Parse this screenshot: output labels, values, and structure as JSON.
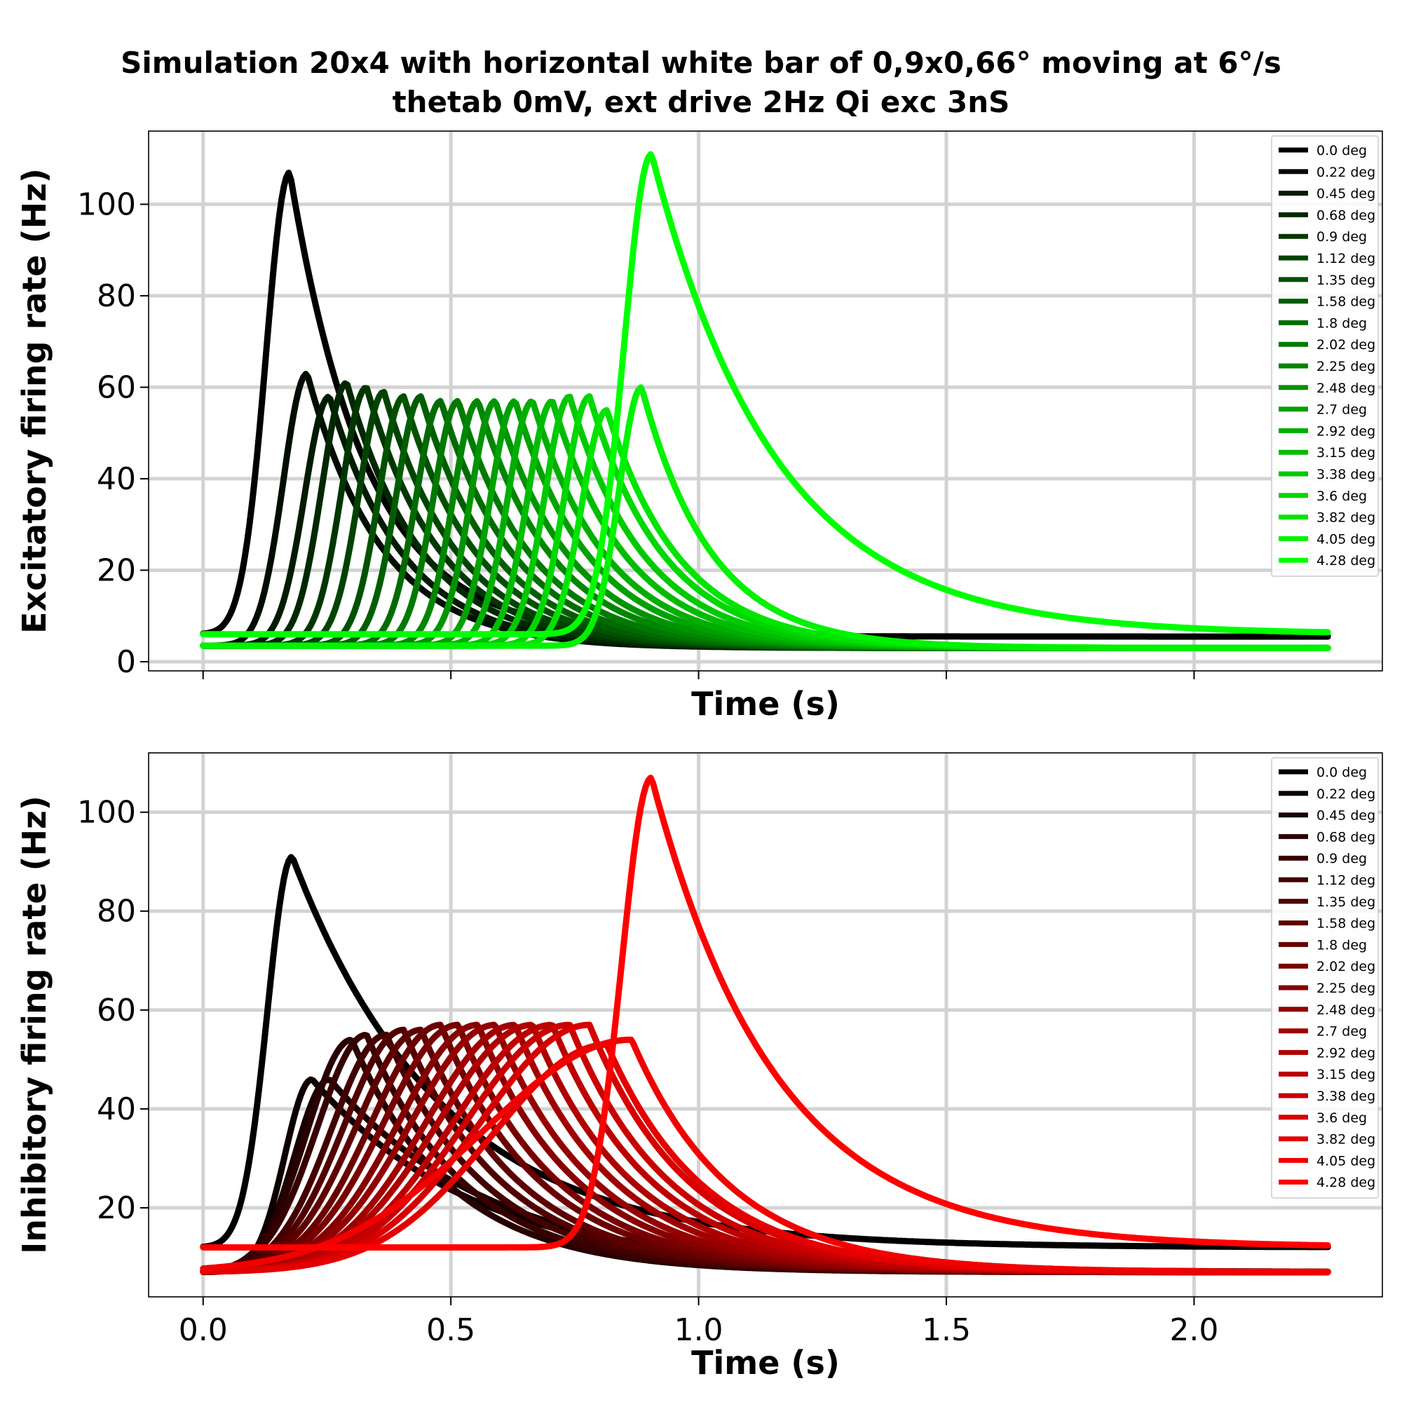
{
  "title": {
    "line1": "Simulation 20x4 with horizontal white bar of 0,9x0,66° moving at 6°/s",
    "line2": "thetab 0mV, ext drive 2Hz Qi exc 3nS"
  },
  "chart_data": [
    {
      "type": "line",
      "panel": "excitatory",
      "xlabel": "Time (s)",
      "ylabel": "Excitatory firing rate (Hz)",
      "xlim": [
        -0.11,
        2.38
      ],
      "ylim": [
        -2,
        116
      ],
      "xticks": [
        0.0,
        0.5,
        1.0,
        1.5,
        2.0
      ],
      "xtick_labels_visible": false,
      "yticks": [
        0,
        20,
        40,
        60,
        80,
        100
      ],
      "ytick_labels": [
        "0",
        "20",
        "40",
        "60",
        "80",
        "100"
      ],
      "grid": true,
      "legend_position": "top-right",
      "color_start": "#000000",
      "color_end": "#00ff00",
      "x_end": 2.27,
      "series": [
        {
          "name": "0.0 deg",
          "peak_t": 0.175,
          "peak": 107,
          "base": 6.0,
          "end": 5.5,
          "rise": 0.048,
          "decay": 0.155
        },
        {
          "name": "0.22 deg",
          "peak_t": 0.21,
          "peak": 63,
          "base": 3.5,
          "end": 3.0,
          "rise": 0.048,
          "decay": 0.15
        },
        {
          "name": "0.45 deg",
          "peak_t": 0.255,
          "peak": 58,
          "base": 3.5,
          "end": 3.0,
          "rise": 0.05,
          "decay": 0.15
        },
        {
          "name": "0.68 deg",
          "peak_t": 0.29,
          "peak": 61,
          "base": 3.5,
          "end": 3.0,
          "rise": 0.05,
          "decay": 0.15
        },
        {
          "name": "0.9 deg",
          "peak_t": 0.33,
          "peak": 60,
          "base": 3.5,
          "end": 3.0,
          "rise": 0.05,
          "decay": 0.15
        },
        {
          "name": "1.12 deg",
          "peak_t": 0.365,
          "peak": 59,
          "base": 3.5,
          "end": 3.0,
          "rise": 0.05,
          "decay": 0.15
        },
        {
          "name": "1.35 deg",
          "peak_t": 0.405,
          "peak": 58,
          "base": 3.5,
          "end": 3.0,
          "rise": 0.05,
          "decay": 0.15
        },
        {
          "name": "1.58 deg",
          "peak_t": 0.44,
          "peak": 58,
          "base": 3.5,
          "end": 3.0,
          "rise": 0.05,
          "decay": 0.15
        },
        {
          "name": "1.8 deg",
          "peak_t": 0.48,
          "peak": 57,
          "base": 3.5,
          "end": 3.0,
          "rise": 0.05,
          "decay": 0.15
        },
        {
          "name": "2.02 deg",
          "peak_t": 0.515,
          "peak": 57,
          "base": 3.5,
          "end": 3.0,
          "rise": 0.05,
          "decay": 0.15
        },
        {
          "name": "2.25 deg",
          "peak_t": 0.555,
          "peak": 57,
          "base": 3.5,
          "end": 3.0,
          "rise": 0.05,
          "decay": 0.15
        },
        {
          "name": "2.48 deg",
          "peak_t": 0.59,
          "peak": 57,
          "base": 3.5,
          "end": 3.0,
          "rise": 0.05,
          "decay": 0.15
        },
        {
          "name": "2.7 deg",
          "peak_t": 0.63,
          "peak": 57,
          "base": 3.5,
          "end": 3.0,
          "rise": 0.05,
          "decay": 0.15
        },
        {
          "name": "2.92 deg",
          "peak_t": 0.665,
          "peak": 57,
          "base": 3.5,
          "end": 3.0,
          "rise": 0.05,
          "decay": 0.15
        },
        {
          "name": "3.15 deg",
          "peak_t": 0.705,
          "peak": 57,
          "base": 3.5,
          "end": 3.0,
          "rise": 0.05,
          "decay": 0.15
        },
        {
          "name": "3.38 deg",
          "peak_t": 0.74,
          "peak": 58,
          "base": 3.5,
          "end": 3.0,
          "rise": 0.05,
          "decay": 0.15
        },
        {
          "name": "3.6 deg",
          "peak_t": 0.78,
          "peak": 58,
          "base": 3.5,
          "end": 3.0,
          "rise": 0.05,
          "decay": 0.15
        },
        {
          "name": "3.82 deg",
          "peak_t": 0.815,
          "peak": 55,
          "base": 3.5,
          "end": 3.0,
          "rise": 0.05,
          "decay": 0.15
        },
        {
          "name": "4.05 deg",
          "peak_t": 0.885,
          "peak": 60,
          "base": 3.5,
          "end": 3.0,
          "rise": 0.045,
          "decay": 0.14
        },
        {
          "name": "4.28 deg",
          "peak_t": 0.905,
          "peak": 111,
          "base": 6.0,
          "end": 6.0,
          "rise": 0.055,
          "decay": 0.25
        }
      ]
    },
    {
      "type": "line",
      "panel": "inhibitory",
      "xlabel": "Time (s)",
      "ylabel": "Inhibitory firing rate (Hz)",
      "xlim": [
        -0.11,
        2.38
      ],
      "ylim": [
        2,
        112
      ],
      "xticks": [
        0.0,
        0.5,
        1.0,
        1.5,
        2.0
      ],
      "xtick_labels_visible": true,
      "xtick_labels": [
        "0.0",
        "0.5",
        "1.0",
        "1.5",
        "2.0"
      ],
      "yticks": [
        20,
        40,
        60,
        80,
        100
      ],
      "ytick_labels": [
        "20",
        "40",
        "60",
        "80",
        "100"
      ],
      "grid": true,
      "legend_position": "top-right",
      "color_start": "#000000",
      "color_end": "#ff0000",
      "x_end": 2.27,
      "series": [
        {
          "name": "0.0 deg",
          "peak_t": 0.18,
          "peak": 91,
          "base": 12.0,
          "end": 12.0,
          "rise": 0.05,
          "decay": 0.3
        },
        {
          "name": "0.22 deg",
          "peak_t": 0.22,
          "peak": 46,
          "base": 7.0,
          "end": 7.0,
          "rise": 0.055,
          "decay": 0.33
        },
        {
          "name": "0.45 deg",
          "peak_t": 0.255,
          "peak": 46,
          "base": 7.0,
          "end": 7.0,
          "rise": 0.07,
          "decay": 0.33
        },
        {
          "name": "0.68 deg",
          "peak_t": 0.3,
          "peak": 54,
          "base": 7.0,
          "end": 7.0,
          "rise": 0.09,
          "decay": 0.2
        },
        {
          "name": "0.9 deg",
          "peak_t": 0.33,
          "peak": 55,
          "base": 7.0,
          "end": 7.0,
          "rise": 0.1,
          "decay": 0.2
        },
        {
          "name": "1.12 deg",
          "peak_t": 0.37,
          "peak": 55,
          "base": 7.0,
          "end": 7.0,
          "rise": 0.11,
          "decay": 0.2
        },
        {
          "name": "1.35 deg",
          "peak_t": 0.405,
          "peak": 56,
          "base": 7.0,
          "end": 7.0,
          "rise": 0.12,
          "decay": 0.2
        },
        {
          "name": "1.58 deg",
          "peak_t": 0.44,
          "peak": 56,
          "base": 7.0,
          "end": 7.0,
          "rise": 0.13,
          "decay": 0.2
        },
        {
          "name": "1.8 deg",
          "peak_t": 0.48,
          "peak": 57,
          "base": 7.0,
          "end": 7.0,
          "rise": 0.14,
          "decay": 0.2
        },
        {
          "name": "2.02 deg",
          "peak_t": 0.515,
          "peak": 57,
          "base": 7.0,
          "end": 7.0,
          "rise": 0.15,
          "decay": 0.2
        },
        {
          "name": "2.25 deg",
          "peak_t": 0.555,
          "peak": 57,
          "base": 7.0,
          "end": 7.0,
          "rise": 0.16,
          "decay": 0.2
        },
        {
          "name": "2.48 deg",
          "peak_t": 0.59,
          "peak": 57,
          "base": 7.0,
          "end": 7.0,
          "rise": 0.17,
          "decay": 0.2
        },
        {
          "name": "2.7 deg",
          "peak_t": 0.63,
          "peak": 57,
          "base": 7.0,
          "end": 7.0,
          "rise": 0.18,
          "decay": 0.2
        },
        {
          "name": "2.92 deg",
          "peak_t": 0.665,
          "peak": 57,
          "base": 7.0,
          "end": 7.0,
          "rise": 0.19,
          "decay": 0.2
        },
        {
          "name": "3.15 deg",
          "peak_t": 0.705,
          "peak": 57,
          "base": 7.0,
          "end": 7.0,
          "rise": 0.2,
          "decay": 0.2
        },
        {
          "name": "3.38 deg",
          "peak_t": 0.74,
          "peak": 57,
          "base": 7.0,
          "end": 7.0,
          "rise": 0.21,
          "decay": 0.2
        },
        {
          "name": "3.6 deg",
          "peak_t": 0.78,
          "peak": 57,
          "base": 7.0,
          "end": 7.0,
          "rise": 0.22,
          "decay": 0.2
        },
        {
          "name": "3.82 deg",
          "peak_t": 0.815,
          "peak": 53,
          "base": 7.0,
          "end": 7.0,
          "rise": 0.23,
          "decay": 0.2
        },
        {
          "name": "4.05 deg",
          "peak_t": 0.865,
          "peak": 54,
          "base": 7.0,
          "end": 7.0,
          "rise": 0.3,
          "decay": 0.2
        },
        {
          "name": "4.28 deg",
          "peak_t": 0.905,
          "peak": 107,
          "base": 12.0,
          "end": 12.0,
          "rise": 0.06,
          "decay": 0.25
        }
      ]
    }
  ]
}
